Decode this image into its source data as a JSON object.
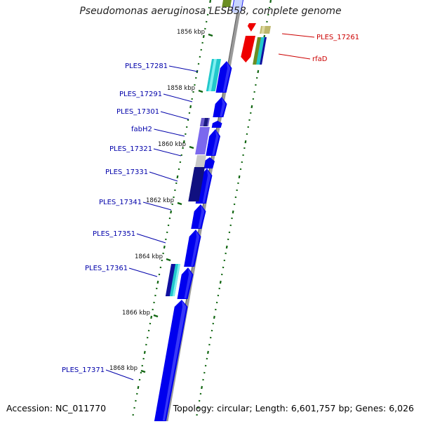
{
  "title": "Pseudomonas aeruginosa LESB58, complete genome",
  "footer": {
    "accession": "Accession: NC_011770",
    "topology": "Topology: circular; Length: 6,601,757 bp; Genes: 6,026"
  },
  "colors": {
    "forward_cds": "#0000ee",
    "label_forward": "#0000aa",
    "label_reverse": "#cc0000",
    "reverse_cds": "#ee0000",
    "tick": "#116611",
    "backbone": "#888888"
  },
  "ticks": {
    "inner": [
      "1856 kbp",
      "1858 kbp",
      "1860 kbp",
      "1862 kbp",
      "1864 kbp",
      "1866 kbp",
      "1868 kbp"
    ]
  },
  "genes": {
    "forward_labels": [
      "PLES_17281",
      "PLES_17291",
      "PLES_17301",
      "fabH2",
      "PLES_17321",
      "PLES_17331",
      "PLES_17341",
      "PLES_17351",
      "PLES_17361",
      "PLES_17371"
    ],
    "reverse_labels": [
      "PLES_17261",
      "rfaD"
    ]
  }
}
